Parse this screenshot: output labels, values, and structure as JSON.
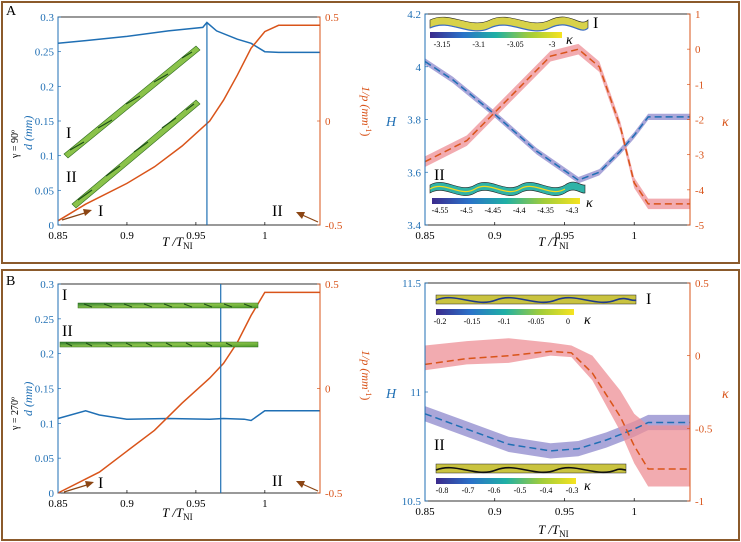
{
  "panels": {
    "A": {
      "label": "A",
      "gamma_label": "γ = 90º",
      "left": {
        "xlabel": "T /T",
        "xlabel_sub": "NI",
        "left_ylabel": "d (mm)",
        "right_ylabel": "1/p (mm",
        "right_ylabel_sup": "-1",
        "right_ylabel_end": ")",
        "roman1": "I",
        "roman2": "II",
        "marker1": "I",
        "marker2": "II"
      },
      "right": {
        "xlabel": "T /T",
        "xlabel_sub": "NI",
        "left_ylabel": "H",
        "right_ylabel": "κ",
        "inset1": {
          "roman": "I",
          "kappa": "κ",
          "ticks": [
            "-3.15",
            "-3.1",
            "-3.05",
            "-3"
          ]
        },
        "inset2": {
          "roman": "II",
          "kappa": "κ",
          "ticks": [
            "-4.55",
            "-4.5",
            "-4.45",
            "-4.4",
            "-4.35",
            "-4.3"
          ]
        }
      }
    },
    "B": {
      "label": "B",
      "gamma_label": "γ = 270º",
      "left": {
        "xlabel": "T /T",
        "xlabel_sub": "NI",
        "left_ylabel": "d (mm)",
        "right_ylabel": "1/p (mm",
        "right_ylabel_sup": "-1",
        "right_ylabel_end": ")",
        "roman1": "I",
        "roman2": "II",
        "marker1": "I",
        "marker2": "II"
      },
      "right": {
        "xlabel": "T /T",
        "xlabel_sub": "NI",
        "left_ylabel": "H",
        "right_ylabel": "κ",
        "inset1": {
          "roman": "I",
          "kappa": "κ",
          "ticks": [
            "-0.2",
            "-0.15",
            "-0.1",
            "-0.05",
            "0"
          ]
        },
        "inset2": {
          "roman": "II",
          "kappa": "κ",
          "ticks": [
            "-0.8",
            "-0.7",
            "-0.6",
            "-0.5",
            "-0.4",
            "-0.3"
          ]
        }
      }
    }
  },
  "colors": {
    "blue": "#1f6fb4",
    "orange": "#d9541a",
    "band_blue": "#8e88cc",
    "band_red": "#ee8f95",
    "frame": "#8b5a2b",
    "axis_left": "#1f6fb4",
    "axis_right": "#d9541a"
  },
  "chart_data": [
    {
      "id": "A-left",
      "type": "line",
      "xlim": [
        0.85,
        1.04
      ],
      "xticks": [
        0.85,
        0.9,
        0.95,
        1
      ],
      "ylim_left": [
        0,
        0.3
      ],
      "yticks_left": [
        0,
        0.05,
        0.1,
        0.15,
        0.2,
        0.25,
        0.3
      ],
      "ylim_right": [
        -0.5,
        0.5
      ],
      "yticks_right": [
        -0.5,
        0,
        0.5
      ],
      "series": [
        {
          "name": "d (mm)",
          "axis": "left",
          "x": [
            0.85,
            0.87,
            0.9,
            0.93,
            0.955,
            0.958,
            0.965,
            0.98,
            0.99,
            1.0,
            1.01,
            1.04
          ],
          "y": [
            0.262,
            0.266,
            0.272,
            0.28,
            0.285,
            0.292,
            0.28,
            0.268,
            0.262,
            0.25,
            0.249,
            0.249
          ]
        },
        {
          "name": "1/p (mm^-1)",
          "axis": "right",
          "x": [
            0.85,
            0.87,
            0.9,
            0.92,
            0.94,
            0.96,
            0.97,
            0.98,
            0.99,
            1.0,
            1.01,
            1.04
          ],
          "y": [
            -0.48,
            -0.4,
            -0.3,
            -0.22,
            -0.12,
            0.0,
            0.1,
            0.22,
            0.35,
            0.43,
            0.46,
            0.46
          ]
        }
      ],
      "vline_x": 0.958
    },
    {
      "id": "A-right",
      "type": "line",
      "xlim": [
        0.85,
        1.04
      ],
      "xticks": [
        0.85,
        0.9,
        0.95,
        1
      ],
      "ylim_left": [
        3.4,
        4.2
      ],
      "yticks_left": [
        3.4,
        3.6,
        3.8,
        4,
        4.2
      ],
      "ylim_right": [
        -5,
        1
      ],
      "yticks_right": [
        -5,
        -4,
        -3,
        -2,
        -1,
        0,
        1
      ],
      "series": [
        {
          "name": "H",
          "axis": "left",
          "x": [
            0.85,
            0.87,
            0.9,
            0.93,
            0.96,
            0.975,
            0.99,
            1.0,
            1.01,
            1.04
          ],
          "y": [
            4.02,
            3.95,
            3.82,
            3.68,
            3.57,
            3.6,
            3.68,
            3.74,
            3.81,
            3.81
          ],
          "band": 0.012
        },
        {
          "name": "κ",
          "axis": "right",
          "x": [
            0.85,
            0.88,
            0.91,
            0.94,
            0.96,
            0.975,
            0.99,
            1.0,
            1.01,
            1.04
          ],
          "y": [
            -3.2,
            -2.6,
            -1.4,
            -0.2,
            0.0,
            -0.5,
            -2.2,
            -3.8,
            -4.4,
            -4.4
          ],
          "band": 0.15
        }
      ]
    },
    {
      "id": "B-left",
      "type": "line",
      "xlim": [
        0.85,
        1.04
      ],
      "xticks": [
        0.85,
        0.9,
        0.95,
        1
      ],
      "ylim_left": [
        0,
        0.3
      ],
      "yticks_left": [
        0,
        0.05,
        0.1,
        0.15,
        0.2,
        0.25,
        0.3
      ],
      "ylim_right": [
        -0.5,
        0.5
      ],
      "yticks_right": [
        -0.5,
        0,
        0.5
      ],
      "series": [
        {
          "name": "d (mm)",
          "axis": "left",
          "x": [
            0.85,
            0.87,
            0.88,
            0.9,
            0.93,
            0.96,
            0.97,
            0.985,
            0.99,
            1.0,
            1.04
          ],
          "y": [
            0.107,
            0.118,
            0.112,
            0.106,
            0.107,
            0.106,
            0.107,
            0.106,
            0.104,
            0.118,
            0.118
          ]
        },
        {
          "name": "1/p (mm^-1)",
          "axis": "right",
          "x": [
            0.85,
            0.88,
            0.9,
            0.92,
            0.94,
            0.96,
            0.97,
            0.98,
            0.99,
            1.0,
            1.04
          ],
          "y": [
            -0.5,
            -0.4,
            -0.3,
            -0.2,
            -0.07,
            0.05,
            0.12,
            0.22,
            0.35,
            0.46,
            0.46
          ]
        }
      ],
      "vline_x": 0.968
    },
    {
      "id": "B-right",
      "type": "line",
      "xlim": [
        0.85,
        1.04
      ],
      "xticks": [
        0.85,
        0.9,
        0.95,
        1
      ],
      "ylim_left": [
        10.5,
        11.5
      ],
      "yticks_left": [
        10.5,
        11,
        11.5
      ],
      "ylim_right": [
        -1,
        0.5
      ],
      "yticks_right": [
        -1,
        -0.5,
        0,
        0.5
      ],
      "series": [
        {
          "name": "H",
          "axis": "left",
          "x": [
            0.85,
            0.88,
            0.91,
            0.94,
            0.96,
            0.98,
            1.0,
            1.01,
            1.04
          ],
          "y": [
            10.9,
            10.83,
            10.76,
            10.73,
            10.74,
            10.78,
            10.83,
            10.86,
            10.86
          ],
          "band": 0.035
        },
        {
          "name": "κ",
          "axis": "right",
          "x": [
            0.85,
            0.88,
            0.91,
            0.94,
            0.955,
            0.97,
            0.99,
            1.0,
            1.01,
            1.04
          ],
          "y": [
            -0.06,
            -0.02,
            0.0,
            0.03,
            0.02,
            -0.12,
            -0.42,
            -0.62,
            -0.78,
            -0.78
          ],
          "band_lo": [
            0.04,
            0.04,
            0.05,
            0.03,
            0.03,
            0.05,
            0.1,
            0.12,
            0.12,
            0.12
          ],
          "band_hi": [
            0.13,
            0.12,
            0.12,
            0.06,
            0.05,
            0.12,
            0.18,
            0.22,
            0.3,
            0.3
          ]
        }
      ]
    }
  ]
}
